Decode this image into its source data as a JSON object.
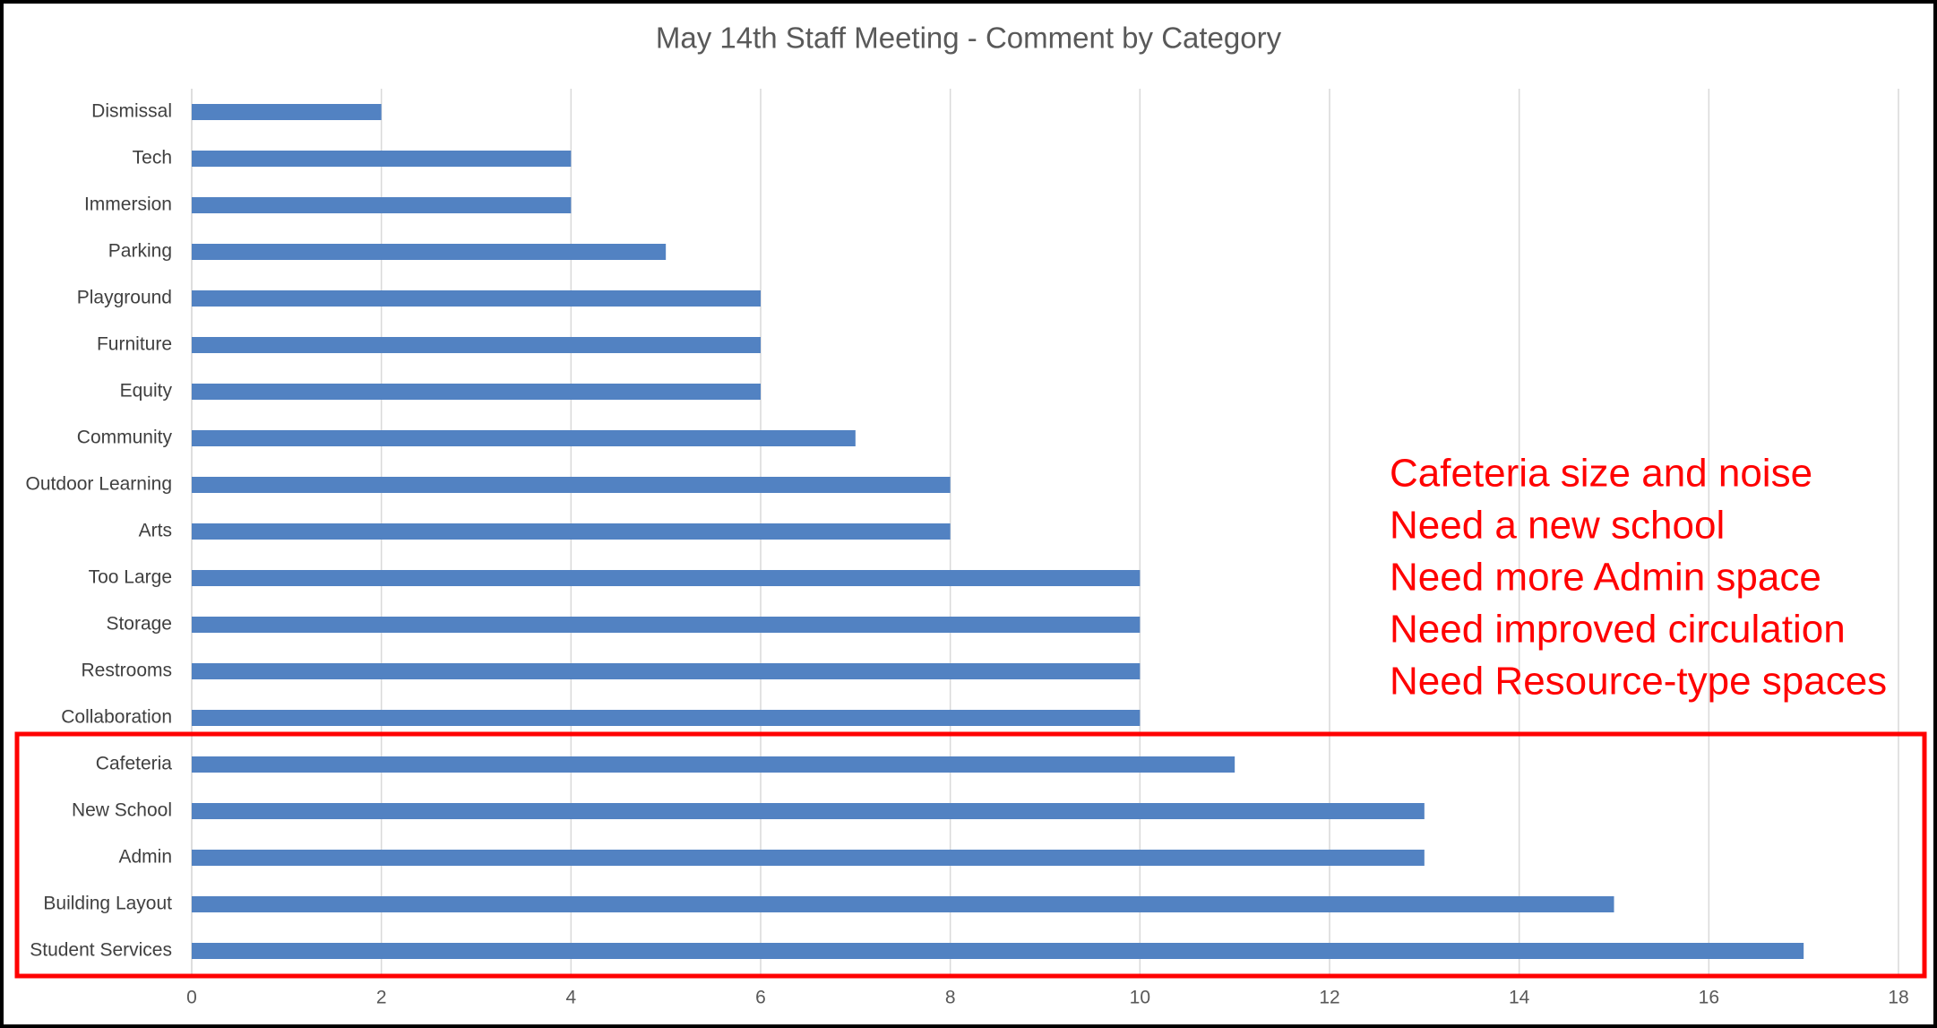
{
  "chart_data": {
    "type": "bar",
    "orientation": "horizontal",
    "title": "May 14th Staff Meeting - Comment by Category",
    "categories": [
      "Dismissal",
      "Tech",
      "Immersion",
      "Parking",
      "Playground",
      "Furniture",
      "Equity",
      "Community",
      "Outdoor Learning",
      "Arts",
      "Too Large",
      "Storage",
      "Restrooms",
      "Collaboration",
      "Cafeteria",
      "New School",
      "Admin",
      "Building Layout",
      "Student Services"
    ],
    "values": [
      2,
      4,
      4,
      5,
      6,
      6,
      6,
      7,
      8,
      8,
      10,
      10,
      10,
      10,
      11,
      13,
      13,
      15,
      17
    ],
    "color": "#5282c2",
    "xlim": [
      0,
      18
    ],
    "xticks": [
      0,
      2,
      4,
      6,
      8,
      10,
      12,
      14,
      16,
      18
    ],
    "grid": true,
    "annotations": [
      "Cafeteria size and noise",
      "Need a new school",
      "Need more Admin space",
      "Need improved circulation",
      "Need Resource-type spaces"
    ]
  }
}
